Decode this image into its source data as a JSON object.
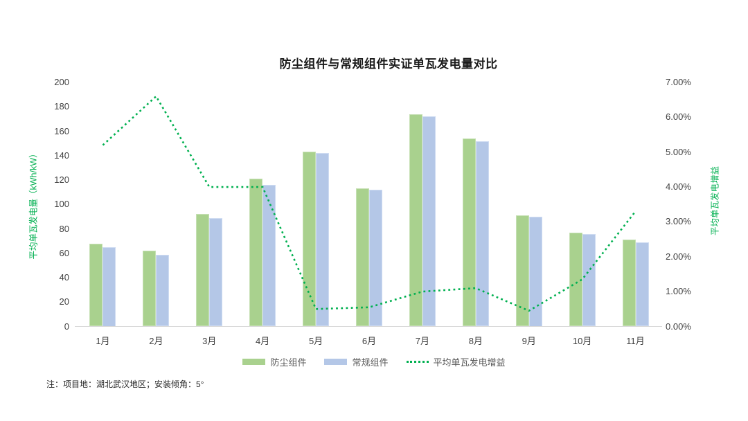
{
  "title": "防尘组件与常规组件实证单瓦发电量对比",
  "note": "注：项目地：湖北武汉地区；安装倾角：5°",
  "colors": {
    "bar_dustproof": "#a9d18e",
    "bar_regular": "#b4c7e7",
    "gain_line": "#00b050",
    "axis_title": "#00b050",
    "tick_text": "#404040",
    "legend_text": "#595959",
    "baseline": "#d9d9d9",
    "background": "#ffffff"
  },
  "chart_data": {
    "type": "bar",
    "subtype": "combo-bar-line-dual-axis",
    "title": "防尘组件与常规组件实证单瓦发电量对比",
    "categories": [
      "1月",
      "2月",
      "3月",
      "4月",
      "5月",
      "6月",
      "7月",
      "8月",
      "9月",
      "10月",
      "11月"
    ],
    "series": [
      {
        "name": "防尘组件",
        "type": "bar",
        "axis": "left",
        "color": "#a9d18e",
        "values": [
          68,
          62,
          92,
          121,
          143,
          113,
          174,
          154,
          91,
          77,
          71
        ]
      },
      {
        "name": "常规组件",
        "type": "bar",
        "axis": "left",
        "color": "#b4c7e7",
        "values": [
          65,
          59,
          89,
          116,
          142,
          112,
          172,
          152,
          90,
          76,
          69
        ]
      },
      {
        "name": "平均单瓦发电增益",
        "type": "line",
        "style": "dotted",
        "axis": "right",
        "color": "#00b050",
        "values_percent": [
          5.2,
          6.6,
          4.0,
          4.0,
          0.5,
          0.55,
          1.0,
          1.1,
          0.45,
          1.35,
          3.3
        ]
      }
    ],
    "left_axis": {
      "title": "平均单瓦发电量（kWh/kW）",
      "min": 0,
      "max": 200,
      "tick_step": 20,
      "tick_labels": [
        "200",
        "180",
        "160",
        "140",
        "120",
        "100",
        "80",
        "60",
        "40",
        "20",
        "0"
      ]
    },
    "right_axis": {
      "title": "平均单瓦发电增益",
      "min_value": 0,
      "max_value": 7,
      "tick_labels": [
        "7.00%",
        "6.00%",
        "5.00%",
        "4.00%",
        "3.00%",
        "2.00%",
        "1.00%",
        "0.00%"
      ]
    },
    "grid": false,
    "legend_position": "bottom",
    "legend": {
      "entries": [
        {
          "label": "防尘组件",
          "swatch": "bar",
          "color": "#a9d18e"
        },
        {
          "label": "常规组件",
          "swatch": "bar",
          "color": "#b4c7e7"
        },
        {
          "label": "平均单瓦发电增益",
          "swatch": "dotted-line",
          "color": "#00b050"
        }
      ]
    }
  }
}
